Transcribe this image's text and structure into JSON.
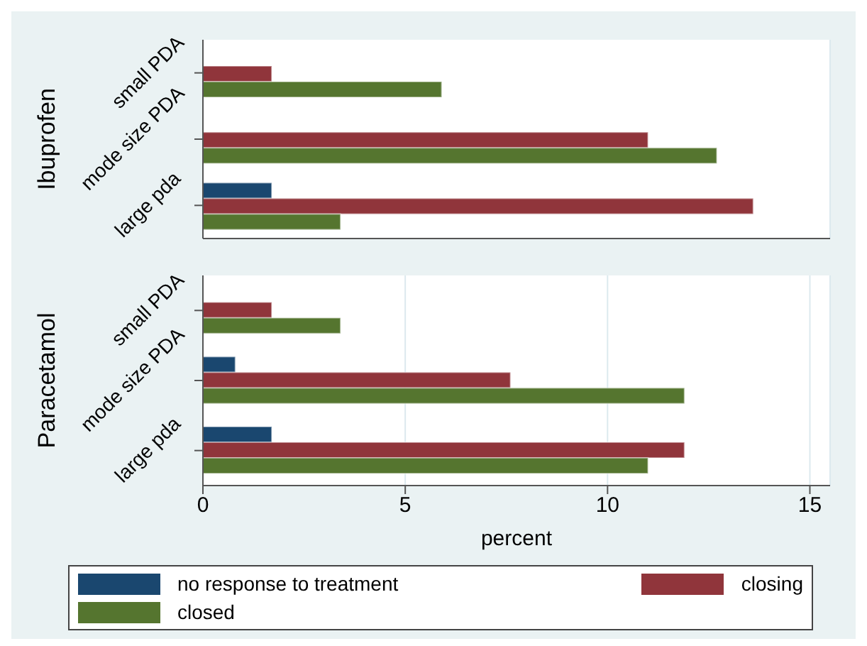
{
  "chart_data": [
    {
      "type": "bar",
      "orientation": "horizontal",
      "ylabel": "Ibuprofen",
      "categories": [
        "small PDA",
        "mode size PDA",
        "large pda"
      ],
      "series": [
        {
          "color": "#1a476f",
          "values": [
            null,
            null,
            1.7
          ]
        },
        {
          "color": "#90353b",
          "values": [
            1.7,
            11.0,
            13.6
          ]
        },
        {
          "color": "#55752f",
          "values": [
            5.9,
            12.7,
            3.4
          ]
        }
      ],
      "xlim": [
        0,
        15.5
      ],
      "xticks": [
        0,
        5,
        10,
        15
      ],
      "grid": "x",
      "tick_labels": "y",
      "legend": false
    },
    {
      "type": "bar",
      "orientation": "horizontal",
      "ylabel": "Paracetamol",
      "xlabel": "percent",
      "categories": [
        "small PDA",
        "mode size PDA",
        "large pda"
      ],
      "series": [
        {
          "name": "no response to treatment",
          "color": "#1a476f",
          "values": [
            null,
            0.8,
            1.7
          ]
        },
        {
          "name": "closing",
          "color": "#90353b",
          "values": [
            1.7,
            7.6,
            11.9
          ]
        },
        {
          "name": "closed",
          "color": "#55752f",
          "values": [
            3.4,
            11.9,
            11.0
          ]
        }
      ],
      "xlim": [
        0,
        15.5
      ],
      "xticks": [
        0,
        5,
        10,
        15
      ],
      "grid": "x",
      "legend": "bottom"
    }
  ]
}
